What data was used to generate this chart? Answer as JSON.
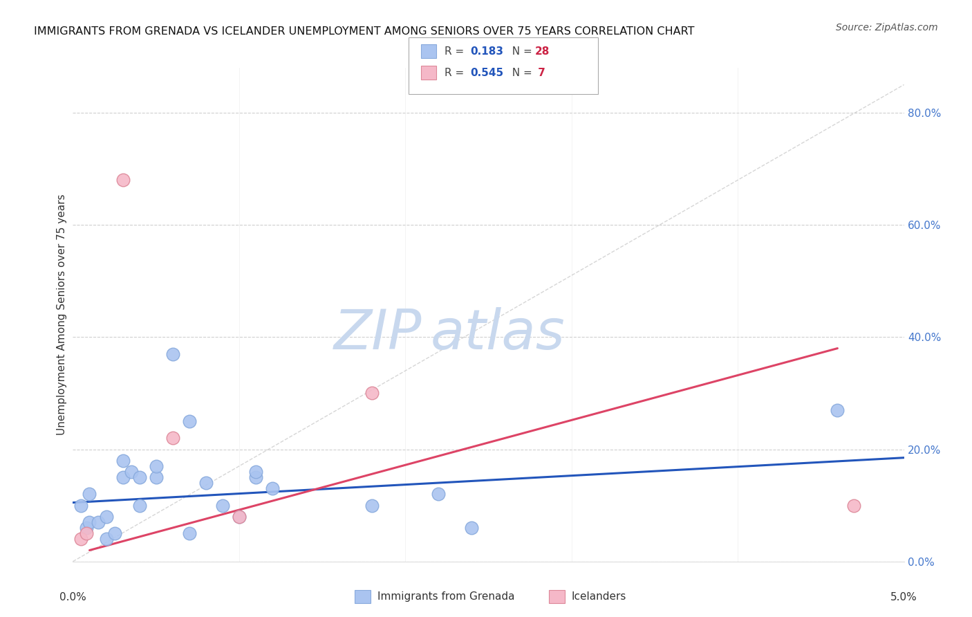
{
  "title": "IMMIGRANTS FROM GRENADA VS ICELANDER UNEMPLOYMENT AMONG SENIORS OVER 75 YEARS CORRELATION CHART",
  "source": "Source: ZipAtlas.com",
  "ylabel": "Unemployment Among Seniors over 75 years",
  "ylabel_right_ticks": [
    "0.0%",
    "20.0%",
    "40.0%",
    "60.0%",
    "80.0%"
  ],
  "ylabel_right_vals": [
    0.0,
    0.2,
    0.4,
    0.6,
    0.8
  ],
  "xmin": 0.0,
  "xmax": 0.05,
  "ymin": 0.0,
  "ymax": 0.88,
  "blue_scatter_x": [
    0.0005,
    0.0008,
    0.001,
    0.001,
    0.0015,
    0.002,
    0.002,
    0.0025,
    0.003,
    0.003,
    0.0035,
    0.004,
    0.004,
    0.005,
    0.005,
    0.006,
    0.007,
    0.007,
    0.008,
    0.009,
    0.01,
    0.011,
    0.011,
    0.012,
    0.018,
    0.022,
    0.024,
    0.046
  ],
  "blue_scatter_y": [
    0.1,
    0.06,
    0.07,
    0.12,
    0.07,
    0.04,
    0.08,
    0.05,
    0.15,
    0.18,
    0.16,
    0.15,
    0.1,
    0.15,
    0.17,
    0.37,
    0.25,
    0.05,
    0.14,
    0.1,
    0.08,
    0.15,
    0.16,
    0.13,
    0.1,
    0.12,
    0.06,
    0.27
  ],
  "pink_scatter_x": [
    0.0005,
    0.0008,
    0.003,
    0.006,
    0.01,
    0.018,
    0.047
  ],
  "pink_scatter_y": [
    0.04,
    0.05,
    0.68,
    0.22,
    0.08,
    0.3,
    0.1
  ],
  "blue_line_x": [
    0.0,
    0.05
  ],
  "blue_line_y": [
    0.105,
    0.185
  ],
  "pink_line_x": [
    0.001,
    0.046
  ],
  "pink_line_y": [
    0.02,
    0.38
  ],
  "diagonal_line_x": [
    0.0,
    0.05
  ],
  "diagonal_line_y": [
    0.0,
    0.85
  ],
  "blue_line_color": "#2255bb",
  "pink_line_color": "#dd4466",
  "diagonal_line_color": "#bbbbbb",
  "blue_scatter_color": "#aac4f0",
  "blue_scatter_edge": "#88aadd",
  "pink_scatter_color": "#f5b8c8",
  "pink_scatter_edge": "#dd8899",
  "watermark_zip": "ZIP",
  "watermark_atlas": "atlas",
  "watermark_color_zip": "#c8d8ee",
  "watermark_color_atlas": "#c8d8ee",
  "legend_R_color": "#2255bb",
  "legend_N_color": "#cc2244",
  "background_color": "#ffffff",
  "grid_color": "#bbbbbb"
}
